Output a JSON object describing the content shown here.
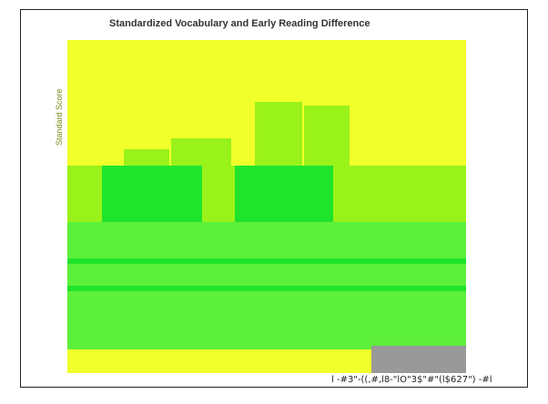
{
  "chart_data": {
    "type": "bar",
    "title": "Standardized Vocabulary and Early Reading Difference",
    "ylabel": "Standard Score",
    "footer": "l -#3\"-((,#,l8-\"lO\"3$\"#\"(l$627\") -#l",
    "background": "#f1ff2a",
    "palette": {
      "light": "#99f21a",
      "mid": "#5cf03a",
      "dark": "#20e42c",
      "gray": "#999999"
    }
  }
}
